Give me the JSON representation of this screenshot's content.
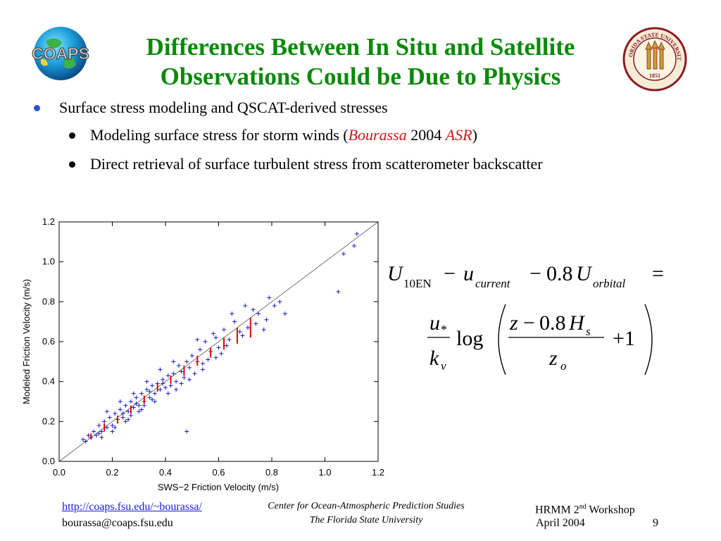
{
  "title": {
    "line1": "Differences Between In Situ and Satellite",
    "line2": "Observations Could be Due to Physics"
  },
  "logos": {
    "coaps_text": "COAPS",
    "seal_text": "FLORIDA STATE UNIVERSITY",
    "seal_year": "1851"
  },
  "bullets": {
    "b1": "Surface stress modeling and QSCAT-derived stresses",
    "b2_pre": "Modeling surface stress for storm winds (",
    "b2_author": "Bourassa",
    "b2_year": " 2004 ",
    "b2_journal": "ASR",
    "b2_post": ")",
    "b3": "Direct retrieval of surface turbulent stress from scatterometer backscatter"
  },
  "chart_data": {
    "type": "scatter",
    "xlabel": "SWS−2 Friction Velocity (m/s)",
    "ylabel": "Modeled Friction Velocity (m/s)",
    "xlim": [
      0.0,
      1.2
    ],
    "ylim": [
      0.0,
      1.2
    ],
    "xticks": [
      "0.0",
      "0.2",
      "0.4",
      "0.6",
      "0.8",
      "1.0",
      "1.2"
    ],
    "yticks": [
      "0.0",
      "0.2",
      "0.4",
      "0.6",
      "0.8",
      "1.0",
      "1.2"
    ],
    "reference_line": "1:1",
    "marker": "+",
    "marker_color": "#1a1acc",
    "errorbar_color": "#e00000",
    "errorbars": [
      {
        "x": 0.12,
        "low": 0.11,
        "high": 0.14
      },
      {
        "x": 0.17,
        "low": 0.15,
        "high": 0.19
      },
      {
        "x": 0.22,
        "low": 0.19,
        "high": 0.23
      },
      {
        "x": 0.27,
        "low": 0.24,
        "high": 0.28
      },
      {
        "x": 0.32,
        "low": 0.29,
        "high": 0.33
      },
      {
        "x": 0.37,
        "low": 0.35,
        "high": 0.39
      },
      {
        "x": 0.42,
        "low": 0.39,
        "high": 0.43
      },
      {
        "x": 0.47,
        "low": 0.43,
        "high": 0.48
      },
      {
        "x": 0.52,
        "low": 0.48,
        "high": 0.53
      },
      {
        "x": 0.57,
        "low": 0.52,
        "high": 0.57
      },
      {
        "x": 0.62,
        "low": 0.56,
        "high": 0.62
      },
      {
        "x": 0.67,
        "low": 0.59,
        "high": 0.67
      },
      {
        "x": 0.72,
        "low": 0.62,
        "high": 0.72
      }
    ],
    "points": [
      [
        1.12,
        1.14
      ],
      [
        1.11,
        1.08
      ],
      [
        1.07,
        1.04
      ],
      [
        1.05,
        0.85
      ],
      [
        0.48,
        0.15
      ],
      [
        0.83,
        0.8
      ],
      [
        0.81,
        0.78
      ],
      [
        0.79,
        0.82
      ],
      [
        0.85,
        0.74
      ],
      [
        0.78,
        0.71
      ],
      [
        0.75,
        0.74
      ],
      [
        0.73,
        0.76
      ],
      [
        0.77,
        0.66
      ],
      [
        0.7,
        0.78
      ],
      [
        0.69,
        0.63
      ],
      [
        0.74,
        0.69
      ],
      [
        0.71,
        0.67
      ],
      [
        0.66,
        0.7
      ],
      [
        0.64,
        0.61
      ],
      [
        0.68,
        0.65
      ],
      [
        0.62,
        0.66
      ],
      [
        0.6,
        0.57
      ],
      [
        0.63,
        0.58
      ],
      [
        0.59,
        0.62
      ],
      [
        0.57,
        0.55
      ],
      [
        0.61,
        0.54
      ],
      [
        0.55,
        0.6
      ],
      [
        0.56,
        0.51
      ],
      [
        0.53,
        0.56
      ],
      [
        0.52,
        0.5
      ],
      [
        0.54,
        0.46
      ],
      [
        0.5,
        0.53
      ],
      [
        0.49,
        0.47
      ],
      [
        0.51,
        0.44
      ],
      [
        0.48,
        0.5
      ],
      [
        0.46,
        0.45
      ],
      [
        0.47,
        0.42
      ],
      [
        0.45,
        0.48
      ],
      [
        0.44,
        0.4
      ],
      [
        0.43,
        0.44
      ],
      [
        0.42,
        0.38
      ],
      [
        0.41,
        0.43
      ],
      [
        0.4,
        0.37
      ],
      [
        0.39,
        0.41
      ],
      [
        0.38,
        0.36
      ],
      [
        0.37,
        0.39
      ],
      [
        0.36,
        0.34
      ],
      [
        0.35,
        0.38
      ],
      [
        0.34,
        0.32
      ],
      [
        0.33,
        0.36
      ],
      [
        0.32,
        0.3
      ],
      [
        0.31,
        0.34
      ],
      [
        0.3,
        0.28
      ],
      [
        0.29,
        0.32
      ],
      [
        0.28,
        0.27
      ],
      [
        0.27,
        0.3
      ],
      [
        0.26,
        0.25
      ],
      [
        0.25,
        0.28
      ],
      [
        0.24,
        0.22
      ],
      [
        0.23,
        0.26
      ],
      [
        0.22,
        0.21
      ],
      [
        0.21,
        0.24
      ],
      [
        0.2,
        0.18
      ],
      [
        0.19,
        0.22
      ],
      [
        0.18,
        0.17
      ],
      [
        0.17,
        0.2
      ],
      [
        0.16,
        0.15
      ],
      [
        0.15,
        0.18
      ],
      [
        0.14,
        0.13
      ],
      [
        0.13,
        0.15
      ],
      [
        0.12,
        0.12
      ],
      [
        0.11,
        0.13
      ],
      [
        0.1,
        0.1
      ],
      [
        0.09,
        0.11
      ],
      [
        0.16,
        0.12
      ],
      [
        0.21,
        0.17
      ],
      [
        0.26,
        0.21
      ],
      [
        0.31,
        0.26
      ],
      [
        0.36,
        0.3
      ],
      [
        0.41,
        0.34
      ],
      [
        0.46,
        0.39
      ],
      [
        0.28,
        0.34
      ],
      [
        0.33,
        0.4
      ],
      [
        0.23,
        0.3
      ],
      [
        0.18,
        0.25
      ],
      [
        0.38,
        0.46
      ],
      [
        0.43,
        0.5
      ],
      [
        0.58,
        0.64
      ],
      [
        0.65,
        0.74
      ],
      [
        0.52,
        0.61
      ],
      [
        0.35,
        0.31
      ],
      [
        0.3,
        0.25
      ],
      [
        0.25,
        0.2
      ],
      [
        0.2,
        0.15
      ],
      [
        0.15,
        0.14
      ],
      [
        0.44,
        0.36
      ],
      [
        0.49,
        0.41
      ],
      [
        0.54,
        0.49
      ],
      [
        0.59,
        0.52
      ],
      [
        0.24,
        0.24
      ],
      [
        0.29,
        0.29
      ],
      [
        0.34,
        0.35
      ],
      [
        0.39,
        0.39
      ],
      [
        0.27,
        0.23
      ],
      [
        0.32,
        0.28
      ]
    ]
  },
  "equation": {
    "U": "U",
    "sub_10EN": "10EN",
    "minus": "−",
    "u": "u",
    "sub_current": "current",
    "coef": "0.8",
    "sub_orbital": "orbital",
    "equals": "=",
    "u_star": "u",
    "star": "*",
    "k": "k",
    "sub_v": "v",
    "log": "log",
    "z": "z",
    "H": "H",
    "sub_s": "s",
    "sub_o": "o",
    "plus_one": "+1"
  },
  "footer": {
    "link": "http://coaps.fsu.edu/~bourassa/",
    "email": "bourassa@coaps.fsu.edu",
    "center_line1": "Center for Ocean-Atmospheric Prediction Studies",
    "center_line2": "The Florida State University",
    "workshop_pre": "HRMM 2",
    "workshop_sup": "nd",
    "workshop_post": " Workshop",
    "date": "April 2004",
    "page": "9"
  }
}
